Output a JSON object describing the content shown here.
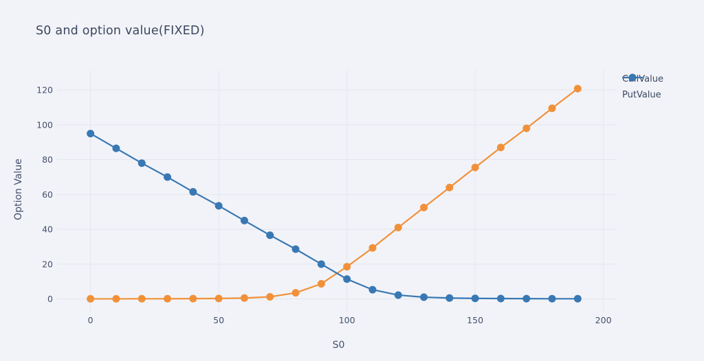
{
  "page": {
    "background_color": "#f2f3f8",
    "grid_color": "#e3e6ee",
    "text_color": "#42506b"
  },
  "chart_data": {
    "type": "line",
    "title": "S0 and option value(FIXED)",
    "xlabel": "S0",
    "ylabel": "Option Value",
    "grid": true,
    "legend_position": "top-right-outside",
    "xlim": [
      -11.7,
      205.2
    ],
    "ylim": [
      -5.7,
      131.5
    ],
    "xticks": [
      0,
      50,
      100,
      150,
      200
    ],
    "yticks": [
      0,
      20,
      40,
      60,
      80,
      100,
      120
    ],
    "x": [
      0,
      10,
      20,
      30,
      40,
      50,
      60,
      70,
      80,
      90,
      100,
      110,
      120,
      130,
      140,
      150,
      160,
      170,
      180,
      190
    ],
    "series": [
      {
        "name": "CallValue",
        "color": "#f0913a",
        "values": [
          0.05,
          0.05,
          0.1,
          0.1,
          0.15,
          0.25,
          0.5,
          1.2,
          3.5,
          8.7,
          18.5,
          29.3,
          41.0,
          52.5,
          64.0,
          75.5,
          87.0,
          98.0,
          109.5,
          120.8
        ]
      },
      {
        "name": "PutValue",
        "color": "#3878b4",
        "values": [
          95.0,
          86.5,
          78.0,
          70.0,
          61.5,
          53.5,
          45.0,
          36.6,
          28.6,
          20.0,
          11.4,
          5.3,
          2.2,
          1.0,
          0.5,
          0.3,
          0.2,
          0.15,
          0.1,
          0.1
        ]
      }
    ]
  }
}
